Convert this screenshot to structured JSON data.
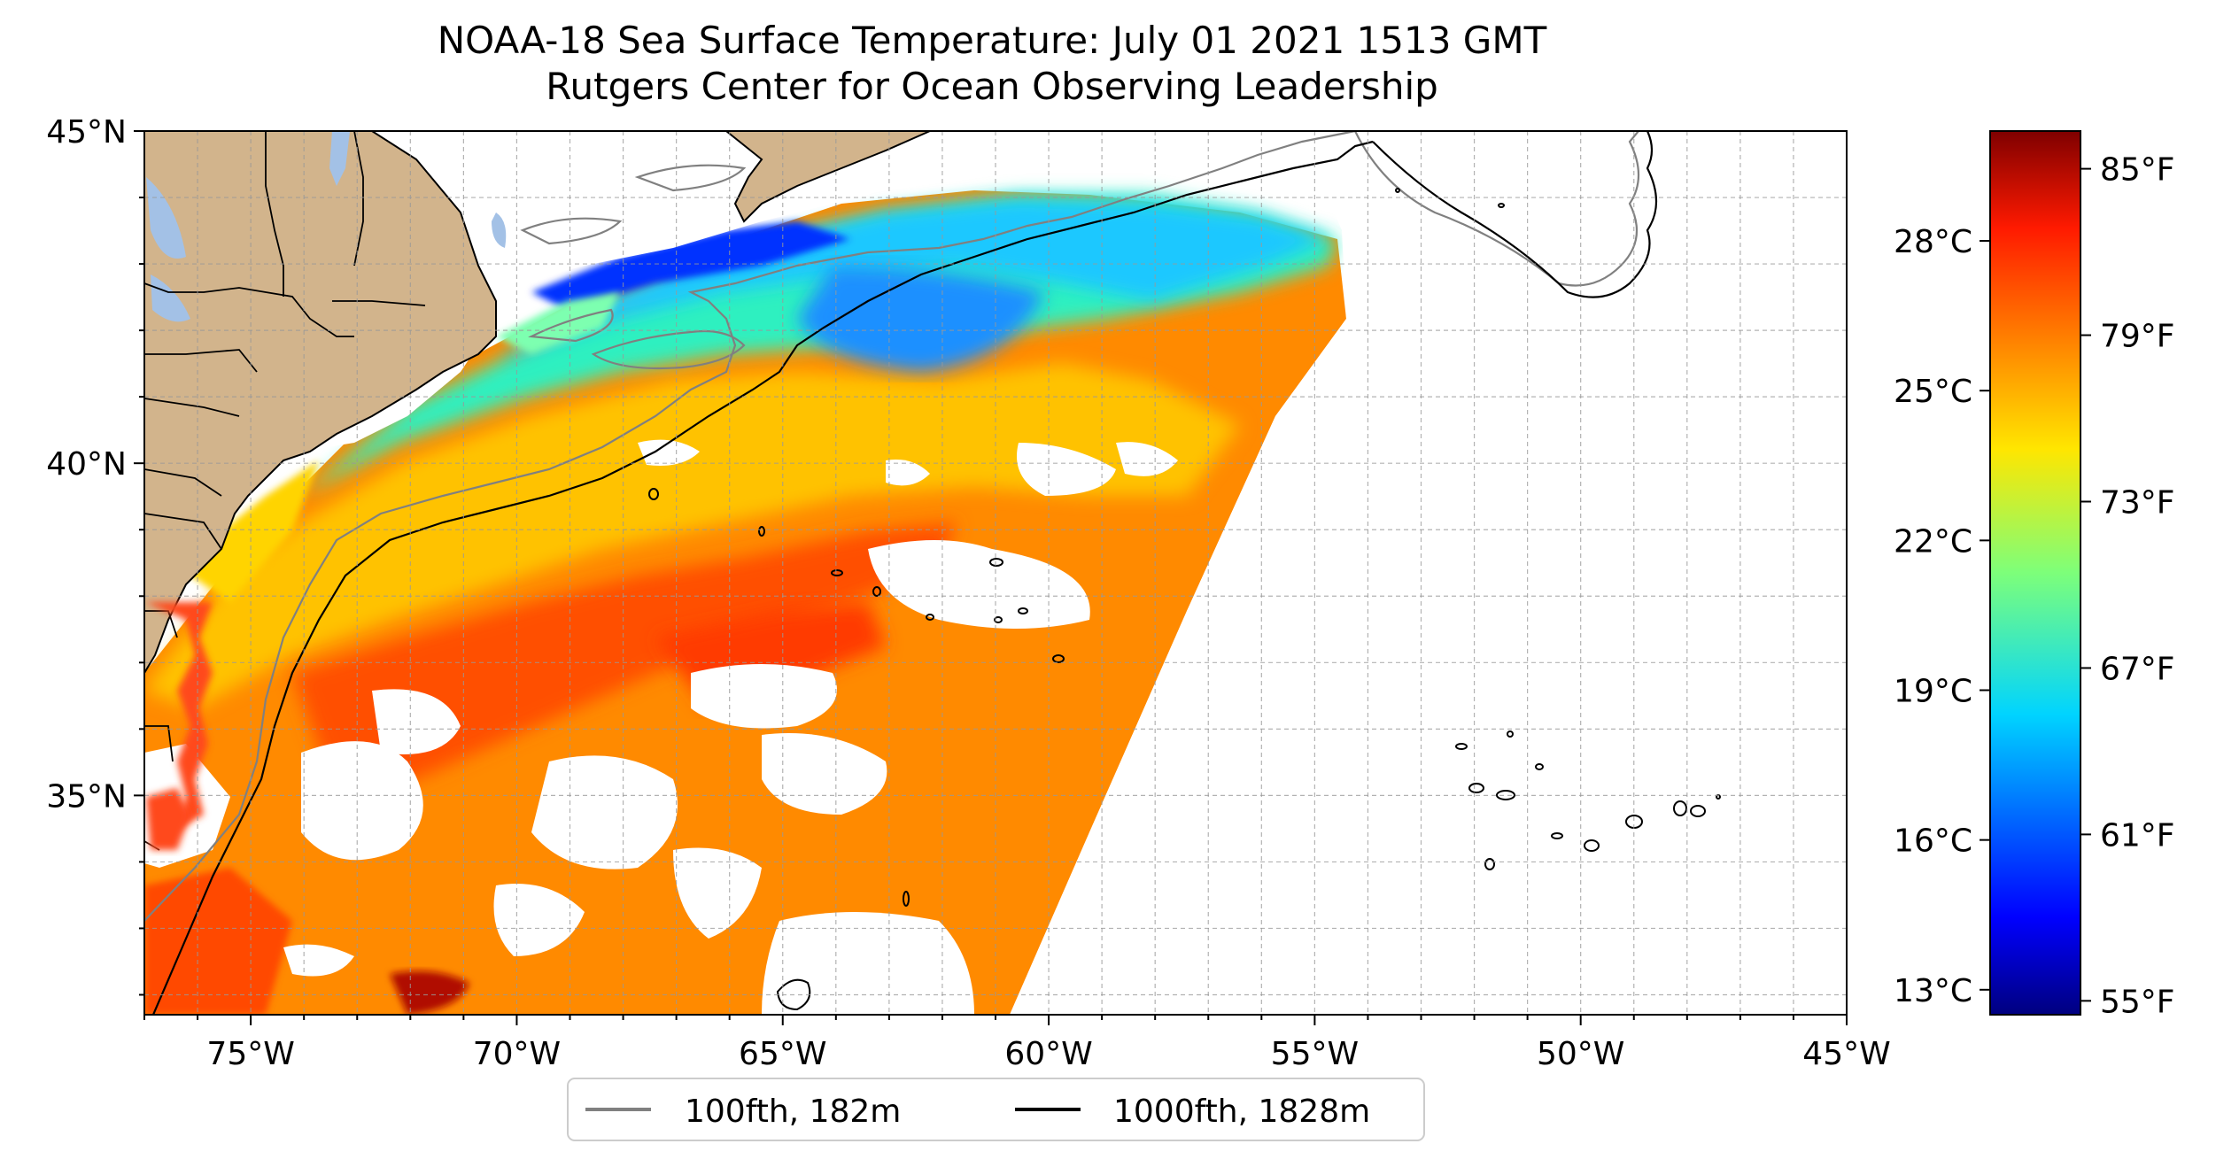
{
  "title": {
    "line1": "NOAA-18 Sea Surface Temperature: July 01 2021 1513 GMT",
    "line2": "Rutgers Center for Ocean Observing Leadership"
  },
  "map": {
    "lon_range": [
      -77,
      -45
    ],
    "lat_range": [
      31.7,
      45
    ],
    "lon_ticks": [
      {
        "value": -75,
        "label": "75°W"
      },
      {
        "value": -70,
        "label": "70°W"
      },
      {
        "value": -65,
        "label": "65°W"
      },
      {
        "value": -60,
        "label": "60°W"
      },
      {
        "value": -55,
        "label": "55°W"
      },
      {
        "value": -50,
        "label": "50°W"
      },
      {
        "value": -45,
        "label": "45°W"
      }
    ],
    "lat_ticks": [
      {
        "value": 45,
        "label": "45°N"
      },
      {
        "value": 40,
        "label": "40°N"
      },
      {
        "value": 35,
        "label": "35°N"
      }
    ],
    "grid": "dashed",
    "land_color": "#d2b48c",
    "no_data_color": "#ffffff"
  },
  "colorbar": {
    "colormap": "jet",
    "celsius_range": [
      12.5,
      30.2
    ],
    "celsius_ticks": [
      {
        "value": 28,
        "label": "28°C"
      },
      {
        "value": 25,
        "label": "25°C"
      },
      {
        "value": 22,
        "label": "22°C"
      },
      {
        "value": 19,
        "label": "19°C"
      },
      {
        "value": 16,
        "label": "16°C"
      },
      {
        "value": 13,
        "label": "13°C"
      }
    ],
    "fahrenheit_ticks": [
      {
        "value": 85,
        "label": "85°F"
      },
      {
        "value": 79,
        "label": "79°F"
      },
      {
        "value": 73,
        "label": "73°F"
      },
      {
        "value": 67,
        "label": "67°F"
      },
      {
        "value": 61,
        "label": "61°F"
      },
      {
        "value": 55,
        "label": "55°F"
      }
    ]
  },
  "legend": {
    "placement": "bottom-center",
    "entries": [
      {
        "label": "100fth, 182m",
        "color": "#808080"
      },
      {
        "label": "1000fth, 1828m",
        "color": "#000000"
      }
    ]
  }
}
